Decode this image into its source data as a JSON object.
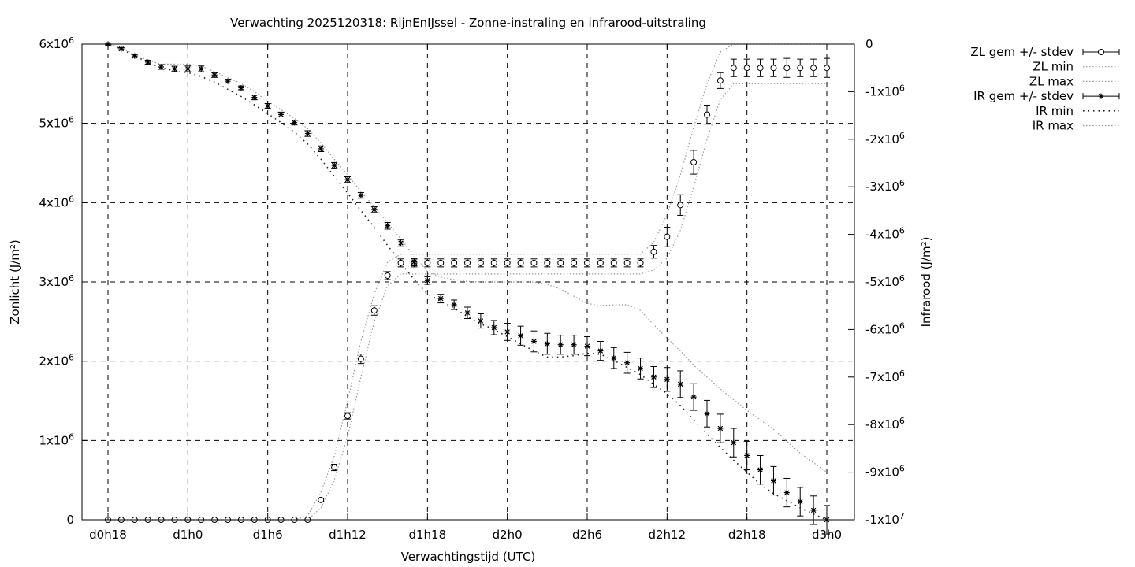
{
  "chart_data": {
    "type": "line",
    "title": "Verwachting 2025120318: RijnEnIJssel - Zonne-instraling en infrarood-uitstraling",
    "xlabel": "Verwachtingstijd (UTC)",
    "ylabel_left": "Zonlicht (J/m²)",
    "ylabel_right": "Infrarood (J/m²)",
    "x_hours": [
      18,
      19,
      20,
      21,
      22,
      23,
      24,
      25,
      26,
      27,
      28,
      29,
      30,
      31,
      32,
      33,
      34,
      35,
      36,
      37,
      38,
      39,
      40,
      41,
      42,
      43,
      44,
      45,
      46,
      47,
      48,
      49,
      50,
      51,
      52,
      53,
      54,
      55,
      56,
      57,
      58,
      59,
      60,
      61,
      62,
      63,
      64,
      65,
      66,
      67,
      68,
      69,
      70,
      71,
      72
    ],
    "x_ticks": [
      {
        "hour": 18,
        "label": "d0h18"
      },
      {
        "hour": 24,
        "label": "d1h0"
      },
      {
        "hour": 30,
        "label": "d1h6"
      },
      {
        "hour": 36,
        "label": "d1h12"
      },
      {
        "hour": 42,
        "label": "d1h18"
      },
      {
        "hour": 48,
        "label": "d2h0"
      },
      {
        "hour": 54,
        "label": "d2h6"
      },
      {
        "hour": 60,
        "label": "d2h12"
      },
      {
        "hour": 66,
        "label": "d2h18"
      },
      {
        "hour": 72,
        "label": "d3h0"
      }
    ],
    "xlim": [
      17.8,
      73.8
    ],
    "y_left": {
      "range": [
        0,
        6000000
      ],
      "ticks": [
        {
          "value": 0,
          "mant": "0",
          "exp": ""
        },
        {
          "value": 1000000,
          "mant": "1x10",
          "exp": "6"
        },
        {
          "value": 2000000,
          "mant": "2x10",
          "exp": "6"
        },
        {
          "value": 3000000,
          "mant": "3x10",
          "exp": "6"
        },
        {
          "value": 4000000,
          "mant": "4x10",
          "exp": "6"
        },
        {
          "value": 5000000,
          "mant": "5x10",
          "exp": "6"
        },
        {
          "value": 6000000,
          "mant": "6x10",
          "exp": "6"
        }
      ]
    },
    "y_right": {
      "range": [
        -10000000,
        0
      ],
      "ticks": [
        {
          "value": 0,
          "mant": "0",
          "exp": ""
        },
        {
          "value": -1000000,
          "mant": "-1x10",
          "exp": "6"
        },
        {
          "value": -2000000,
          "mant": "-2x10",
          "exp": "6"
        },
        {
          "value": -3000000,
          "mant": "-3x10",
          "exp": "6"
        },
        {
          "value": -4000000,
          "mant": "-4x10",
          "exp": "6"
        },
        {
          "value": -5000000,
          "mant": "-5x10",
          "exp": "6"
        },
        {
          "value": -6000000,
          "mant": "-6x10",
          "exp": "6"
        },
        {
          "value": -7000000,
          "mant": "-7x10",
          "exp": "6"
        },
        {
          "value": -8000000,
          "mant": "-8x10",
          "exp": "6"
        },
        {
          "value": -9000000,
          "mant": "-9x10",
          "exp": "6"
        },
        {
          "value": -10000000,
          "mant": "-1x10",
          "exp": "7"
        }
      ]
    },
    "grid": true,
    "legend_position": "top-right, outside plot",
    "series": [
      {
        "name": "ZL gem +/- stdev",
        "axis": "left",
        "marker": "circle",
        "mean": [
          0,
          0,
          0,
          0,
          0,
          0,
          0,
          0,
          0,
          0,
          0,
          0,
          0,
          0,
          0,
          0,
          250000,
          660000,
          1310000,
          2030000,
          2640000,
          3080000,
          3240000,
          3240000,
          3240000,
          3240000,
          3240000,
          3240000,
          3240000,
          3240000,
          3240000,
          3240000,
          3240000,
          3240000,
          3240000,
          3240000,
          3240000,
          3240000,
          3240000,
          3240000,
          3240000,
          3380000,
          3570000,
          3970000,
          4510000,
          5110000,
          5540000,
          5700000,
          5700000,
          5700000,
          5700000,
          5700000,
          5700000,
          5700000,
          5700000
        ],
        "stdev": [
          0,
          0,
          0,
          0,
          0,
          0,
          0,
          0,
          0,
          0,
          0,
          0,
          0,
          0,
          0,
          0,
          20000,
          40000,
          40000,
          60000,
          60000,
          50000,
          50000,
          50000,
          50000,
          50000,
          50000,
          50000,
          50000,
          50000,
          50000,
          50000,
          50000,
          50000,
          50000,
          50000,
          50000,
          50000,
          50000,
          50000,
          50000,
          80000,
          120000,
          130000,
          150000,
          120000,
          100000,
          110000,
          110000,
          110000,
          110000,
          120000,
          110000,
          110000,
          120000
        ]
      },
      {
        "name": "ZL min",
        "axis": "left",
        "style": "dotted",
        "values": [
          0,
          0,
          0,
          0,
          0,
          0,
          0,
          0,
          0,
          0,
          0,
          0,
          0,
          0,
          0,
          0,
          150000,
          500000,
          1050000,
          1800000,
          2500000,
          2950000,
          3100000,
          3100000,
          3100000,
          3100000,
          3100000,
          3100000,
          3100000,
          3100000,
          3100000,
          3100000,
          3100000,
          3100000,
          3100000,
          3100000,
          3100000,
          3100000,
          3100000,
          3100000,
          3100000,
          3150000,
          3300000,
          3650000,
          4200000,
          4800000,
          5300000,
          5500000,
          5500000,
          5500000,
          5500000,
          5500000,
          5500000,
          5500000,
          5500000
        ]
      },
      {
        "name": "ZL max",
        "axis": "left",
        "style": "dotted",
        "values": [
          0,
          0,
          0,
          0,
          0,
          0,
          0,
          0,
          0,
          0,
          0,
          0,
          0,
          0,
          0,
          50000,
          350000,
          800000,
          1500000,
          2250000,
          2850000,
          3250000,
          3350000,
          3350000,
          3350000,
          3350000,
          3350000,
          3350000,
          3350000,
          3350000,
          3350000,
          3350000,
          3350000,
          3350000,
          3350000,
          3350000,
          3350000,
          3350000,
          3350000,
          3350000,
          3350000,
          3500000,
          3850000,
          4350000,
          4950000,
          5500000,
          5900000,
          6000000,
          6000000,
          6000000,
          6000000,
          6000000,
          6000000,
          6000000,
          6000000
        ]
      },
      {
        "name": "IR gem +/- stdev",
        "axis": "right",
        "marker": "star",
        "mean": [
          0,
          -100000,
          -250000,
          -380000,
          -480000,
          -520000,
          -520000,
          -520000,
          -650000,
          -780000,
          -920000,
          -1120000,
          -1300000,
          -1480000,
          -1650000,
          -1880000,
          -2200000,
          -2550000,
          -2850000,
          -3180000,
          -3480000,
          -3820000,
          -4180000,
          -4580000,
          -4970000,
          -5350000,
          -5480000,
          -5650000,
          -5820000,
          -5960000,
          -6050000,
          -6130000,
          -6250000,
          -6300000,
          -6320000,
          -6320000,
          -6350000,
          -6450000,
          -6600000,
          -6700000,
          -6820000,
          -7000000,
          -7050000,
          -7150000,
          -7420000,
          -7770000,
          -8080000,
          -8380000,
          -8650000,
          -8950000,
          -9180000,
          -9430000,
          -9620000,
          -9800000,
          -10000000
        ],
        "stdev": [
          20000,
          25000,
          30000,
          40000,
          50000,
          55000,
          60000,
          60000,
          50000,
          40000,
          40000,
          50000,
          50000,
          50000,
          50000,
          60000,
          60000,
          60000,
          60000,
          60000,
          60000,
          70000,
          70000,
          80000,
          80000,
          90000,
          100000,
          120000,
          150000,
          150000,
          180000,
          200000,
          220000,
          220000,
          200000,
          200000,
          200000,
          200000,
          220000,
          220000,
          220000,
          220000,
          250000,
          280000,
          280000,
          280000,
          300000,
          300000,
          300000,
          300000,
          300000,
          300000,
          300000,
          300000,
          300000
        ]
      },
      {
        "name": "IR min",
        "axis": "right",
        "style": "sparse-dotted",
        "values": [
          0,
          -100000,
          -250000,
          -380000,
          -500000,
          -560000,
          -600000,
          -680000,
          -800000,
          -950000,
          -1100000,
          -1280000,
          -1460000,
          -1650000,
          -1850000,
          -2100000,
          -2420000,
          -2780000,
          -3130000,
          -3500000,
          -3850000,
          -4230000,
          -4600000,
          -4950000,
          -5250000,
          -5400000,
          -5550000,
          -5730000,
          -5880000,
          -6000000,
          -6150000,
          -6300000,
          -6450000,
          -6580000,
          -6580000,
          -6550000,
          -6500000,
          -6520000,
          -6650000,
          -6800000,
          -6950000,
          -7150000,
          -7350000,
          -7600000,
          -7900000,
          -8200000,
          -8480000,
          -8750000,
          -9000000,
          -9250000,
          -9450000,
          -9600000,
          -9750000,
          -9880000,
          -10000000
        ]
      },
      {
        "name": "IR max",
        "axis": "right",
        "style": "dotted",
        "values": [
          0,
          -80000,
          -220000,
          -340000,
          -420000,
          -420000,
          -420000,
          -460000,
          -580000,
          -700000,
          -830000,
          -1000000,
          -1200000,
          -1380000,
          -1560000,
          -1780000,
          -2080000,
          -2420000,
          -2750000,
          -3100000,
          -3420000,
          -3750000,
          -4100000,
          -4450000,
          -4780000,
          -4900000,
          -4950000,
          -4990000,
          -5000000,
          -5000000,
          -5000000,
          -5000000,
          -5000000,
          -5050000,
          -5150000,
          -5300000,
          -5450000,
          -5500000,
          -5480000,
          -5480000,
          -5600000,
          -5900000,
          -6180000,
          -6450000,
          -6750000,
          -7000000,
          -7250000,
          -7480000,
          -7700000,
          -7900000,
          -8100000,
          -8350000,
          -8600000,
          -8800000,
          -9000000
        ]
      }
    ]
  }
}
